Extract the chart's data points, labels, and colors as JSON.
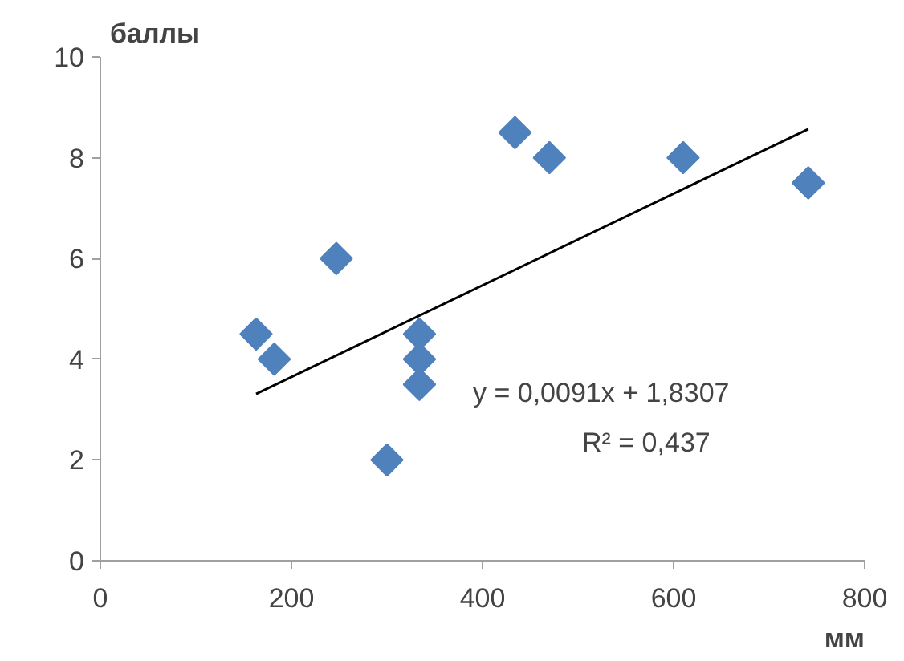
{
  "chart_data": {
    "type": "scatter",
    "xlabel": "мм",
    "ylabel": "баллы",
    "xlim": [
      0,
      800
    ],
    "xticks": [
      0,
      200,
      400,
      600,
      800
    ],
    "ylim": [
      0,
      10
    ],
    "yticks": [
      0,
      2,
      4,
      6,
      8,
      10
    ],
    "grid": false,
    "legend": false,
    "marker": "diamond",
    "series": [
      {
        "type": "scatter",
        "color": "#4f81bd",
        "x": [
          163,
          182,
          247,
          300,
          334,
          334,
          334,
          434,
          470,
          610,
          741
        ],
        "values": [
          4.5,
          4.0,
          6.0,
          2.0,
          4.5,
          4.0,
          3.5,
          8.5,
          8.0,
          8.0,
          7.5
        ]
      },
      {
        "type": "line",
        "color": "#000000",
        "marker": "none",
        "x": [
          163,
          741
        ],
        "values": [
          3.31,
          8.57
        ]
      }
    ],
    "annotations": [
      "y = 0,0091x + 1,8307",
      "R² = 0,437"
    ]
  }
}
